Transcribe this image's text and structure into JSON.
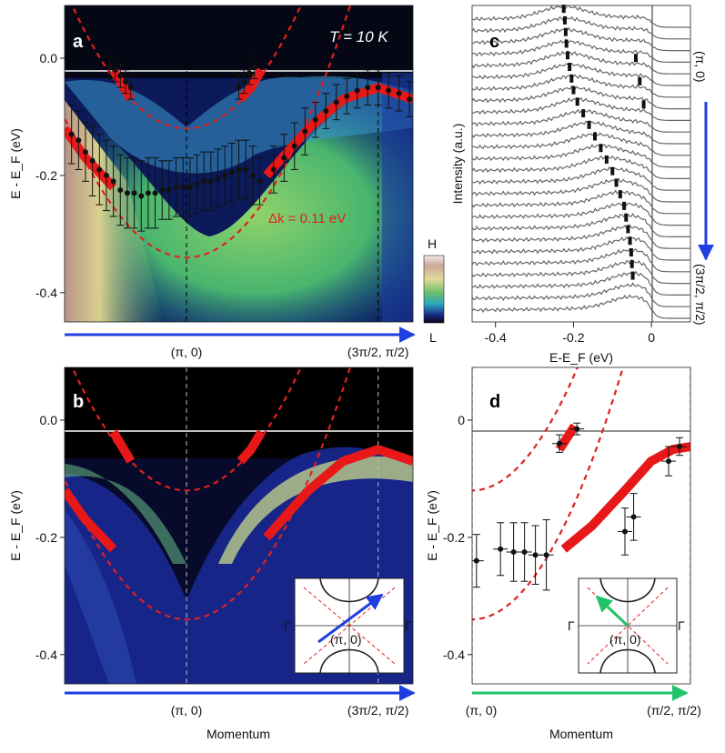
{
  "chart_data": [
    {
      "panel": "a",
      "type": "heatmap",
      "label": "a",
      "temperature_label": "T = 10 K",
      "ylabel": "E - E_F (eV)",
      "ylim": [
        -0.45,
        0.09
      ],
      "yticks": [
        0.0,
        -0.2,
        -0.4
      ],
      "ytick_labels": [
        "0.0",
        "-0.2",
        "-0.4"
      ],
      "x_tick_labels": [
        "(π, 0)",
        "(3π/2, π/2)"
      ],
      "x_tick_positions": [
        0.35,
        0.9
      ],
      "annotation": "Δk = 0.11 eV",
      "colorbar": {
        "high": "H",
        "low": "L"
      },
      "fermi_level": 0.0,
      "dashed_bands": [
        {
          "name": "upper",
          "k0": 0.35,
          "e0": -0.12,
          "curvature": 1.95
        },
        {
          "name": "lower",
          "k0": 0.35,
          "e0": -0.34,
          "curvature": 1.95
        }
      ],
      "red_bands": [
        {
          "x": [
            0.14,
            0.17,
            0.19
          ],
          "y": [
            -0.02,
            -0.05,
            -0.07
          ]
        },
        {
          "x": [
            0.505,
            0.535,
            0.565
          ],
          "y": [
            -0.07,
            -0.05,
            -0.02
          ]
        },
        {
          "x": [
            0.0,
            0.06,
            0.14
          ],
          "y": [
            -0.12,
            -0.17,
            -0.22
          ]
        },
        {
          "x": [
            0.58,
            0.7,
            0.8,
            0.9,
            1.0
          ],
          "y": [
            -0.2,
            -0.12,
            -0.07,
            -0.05,
            -0.07
          ]
        }
      ],
      "points": [
        {
          "x": 0.13,
          "y": -0.015,
          "err": 0.02
        },
        {
          "x": 0.145,
          "y": -0.02,
          "err": 0.02
        },
        {
          "x": 0.16,
          "y": -0.03,
          "err": 0.02
        },
        {
          "x": 0.175,
          "y": -0.04,
          "err": 0.02
        },
        {
          "x": 0.19,
          "y": -0.05,
          "err": 0.02
        },
        {
          "x": 0.5,
          "y": -0.05,
          "err": 0.02
        },
        {
          "x": 0.515,
          "y": -0.04,
          "err": 0.02
        },
        {
          "x": 0.53,
          "y": -0.025,
          "err": 0.02
        },
        {
          "x": 0.545,
          "y": -0.015,
          "err": 0.02
        },
        {
          "x": 0.02,
          "y": -0.13,
          "err": 0.05
        },
        {
          "x": 0.04,
          "y": -0.14,
          "err": 0.05
        },
        {
          "x": 0.06,
          "y": -0.16,
          "err": 0.05
        },
        {
          "x": 0.08,
          "y": -0.175,
          "err": 0.06
        },
        {
          "x": 0.1,
          "y": -0.19,
          "err": 0.06
        },
        {
          "x": 0.12,
          "y": -0.2,
          "err": 0.06
        },
        {
          "x": 0.14,
          "y": -0.21,
          "err": 0.06
        },
        {
          "x": 0.16,
          "y": -0.225,
          "err": 0.06
        },
        {
          "x": 0.18,
          "y": -0.23,
          "err": 0.06
        },
        {
          "x": 0.2,
          "y": -0.23,
          "err": 0.06
        },
        {
          "x": 0.22,
          "y": -0.235,
          "err": 0.06
        },
        {
          "x": 0.24,
          "y": -0.23,
          "err": 0.06
        },
        {
          "x": 0.26,
          "y": -0.23,
          "err": 0.06
        },
        {
          "x": 0.28,
          "y": -0.225,
          "err": 0.05
        },
        {
          "x": 0.3,
          "y": -0.225,
          "err": 0.05
        },
        {
          "x": 0.32,
          "y": -0.22,
          "err": 0.05
        },
        {
          "x": 0.34,
          "y": -0.22,
          "err": 0.05
        },
        {
          "x": 0.36,
          "y": -0.22,
          "err": 0.05
        },
        {
          "x": 0.38,
          "y": -0.215,
          "err": 0.05
        },
        {
          "x": 0.4,
          "y": -0.21,
          "err": 0.05
        },
        {
          "x": 0.42,
          "y": -0.21,
          "err": 0.05
        },
        {
          "x": 0.44,
          "y": -0.205,
          "err": 0.05
        },
        {
          "x": 0.46,
          "y": -0.2,
          "err": 0.05
        },
        {
          "x": 0.48,
          "y": -0.195,
          "err": 0.05
        },
        {
          "x": 0.5,
          "y": -0.19,
          "err": 0.05
        },
        {
          "x": 0.52,
          "y": -0.19,
          "err": 0.05
        },
        {
          "x": 0.54,
          "y": -0.2,
          "err": 0.05
        },
        {
          "x": 0.56,
          "y": -0.21,
          "err": 0.04
        },
        {
          "x": 0.6,
          "y": -0.19,
          "err": 0.04
        },
        {
          "x": 0.63,
          "y": -0.17,
          "err": 0.04
        },
        {
          "x": 0.66,
          "y": -0.15,
          "err": 0.04
        },
        {
          "x": 0.69,
          "y": -0.125,
          "err": 0.04
        },
        {
          "x": 0.72,
          "y": -0.105,
          "err": 0.03
        },
        {
          "x": 0.75,
          "y": -0.09,
          "err": 0.03
        },
        {
          "x": 0.78,
          "y": -0.075,
          "err": 0.03
        },
        {
          "x": 0.81,
          "y": -0.065,
          "err": 0.03
        },
        {
          "x": 0.84,
          "y": -0.055,
          "err": 0.03
        },
        {
          "x": 0.87,
          "y": -0.05,
          "err": 0.03
        },
        {
          "x": 0.9,
          "y": -0.05,
          "err": 0.03
        },
        {
          "x": 0.93,
          "y": -0.055,
          "err": 0.03
        },
        {
          "x": 0.96,
          "y": -0.06,
          "err": 0.03
        },
        {
          "x": 0.99,
          "y": -0.07,
          "err": 0.03
        }
      ]
    },
    {
      "panel": "b",
      "type": "heatmap",
      "label": "b",
      "ylabel": "E - E_F (eV)",
      "xlabel": "Momentum",
      "ylim": [
        -0.45,
        0.09
      ],
      "yticks": [
        0.0,
        -0.2,
        -0.4
      ],
      "ytick_labels": [
        "0.0",
        "-0.2",
        "-0.4"
      ],
      "x_tick_labels": [
        "(π, 0)",
        "(3π/2, π/2)"
      ],
      "x_tick_positions": [
        0.35,
        0.9
      ],
      "inset": {
        "labels": [
          "Γ",
          "Γ",
          "(π, 0)"
        ],
        "arrow_color": "#1f3fe0"
      }
    },
    {
      "panel": "c",
      "type": "line",
      "label": "c",
      "ylabel": "Intensity (a.u.)",
      "xlabel": "E-E_F (eV)",
      "xlim": [
        -0.46,
        0.1
      ],
      "xticks": [
        -0.4,
        -0.2,
        0.0
      ],
      "xtick_labels": [
        "-0.4",
        "-0.2",
        "0"
      ],
      "n_curves": 26,
      "right_labels": {
        "top": "(π, 0)",
        "bottom": "(3π/2, π/2)"
      },
      "peak_markers_main": [
        -0.225,
        -0.222,
        -0.22,
        -0.218,
        -0.215,
        -0.21,
        -0.205,
        -0.2,
        -0.19,
        -0.175,
        -0.16,
        -0.145,
        -0.13,
        -0.115,
        -0.1,
        -0.09,
        -0.08,
        -0.07,
        -0.065,
        -0.06,
        -0.055,
        -0.052,
        -0.05,
        -0.048
      ],
      "peak_markers_second": [
        -0.04,
        -0.03,
        -0.02
      ]
    },
    {
      "panel": "d",
      "type": "scatter",
      "label": "d",
      "ylabel": "E - E_F (eV)",
      "xlabel": "Momentum",
      "ylim": [
        -0.45,
        0.09
      ],
      "yticks": [
        0.0,
        -0.2,
        -0.4
      ],
      "ytick_labels": [
        "0",
        "-0.2",
        "-0.4"
      ],
      "x_tick_labels": [
        "(π, 0)",
        "(π/2, π/2)"
      ],
      "x_tick_positions": [
        0.0,
        1.0
      ],
      "dashed_bands": [
        {
          "name": "upper",
          "k0": 0.0,
          "e0": -0.12,
          "curvature": 0.9
        },
        {
          "name": "lower",
          "k0": 0.0,
          "e0": -0.34,
          "curvature": 0.9
        }
      ],
      "points": [
        {
          "x": 0.02,
          "y": -0.24,
          "err": 0.045
        },
        {
          "x": 0.13,
          "y": -0.22,
          "err": 0.045
        },
        {
          "x": 0.19,
          "y": -0.225,
          "err": 0.05
        },
        {
          "x": 0.24,
          "y": -0.225,
          "err": 0.05
        },
        {
          "x": 0.29,
          "y": -0.23,
          "err": 0.05
        },
        {
          "x": 0.34,
          "y": -0.23,
          "err": 0.06
        },
        {
          "x": 0.4,
          "y": -0.04,
          "err": 0.015
        },
        {
          "x": 0.48,
          "y": -0.015,
          "err": 0.01
        },
        {
          "x": 0.7,
          "y": -0.19,
          "err": 0.04
        },
        {
          "x": 0.74,
          "y": -0.165,
          "err": 0.04
        },
        {
          "x": 0.9,
          "y": -0.07,
          "err": 0.025
        },
        {
          "x": 0.95,
          "y": -0.045,
          "err": 0.015
        }
      ],
      "inset": {
        "labels": [
          "Γ",
          "Γ",
          "(π, 0)"
        ],
        "arrow_color": "#22c46a"
      }
    }
  ]
}
